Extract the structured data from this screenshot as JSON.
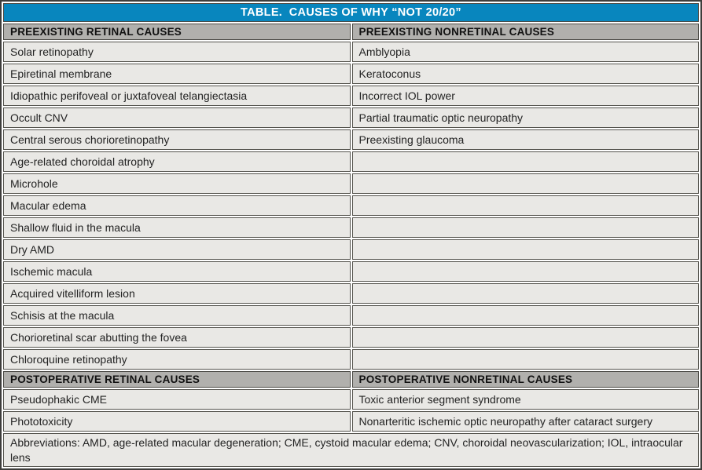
{
  "title": "TABLE.  CAUSES OF WHY “NOT 20/20”",
  "colors": {
    "header_blue": "#0886BE",
    "section_gray": "#B1B0AD",
    "row_bg": "#E9E8E5",
    "border_dark": "#4A4944"
  },
  "sections": [
    {
      "left_header": "PREEXISTING RETINAL CAUSES",
      "right_header": "PREEXISTING NONRETINAL CAUSES",
      "rows": [
        [
          "Solar retinopathy",
          "Amblyopia"
        ],
        [
          "Epiretinal membrane",
          "Keratoconus"
        ],
        [
          "Idiopathic perifoveal or juxtafoveal telangiectasia",
          "Incorrect IOL power"
        ],
        [
          "Occult CNV",
          "Partial traumatic optic neuropathy"
        ],
        [
          "Central serous chorioretinopathy",
          "Preexisting glaucoma"
        ],
        [
          "Age-related choroidal atrophy",
          ""
        ],
        [
          "Microhole",
          ""
        ],
        [
          "Macular edema",
          ""
        ],
        [
          "Shallow fluid in the macula",
          ""
        ],
        [
          "Dry AMD",
          ""
        ],
        [
          "Ischemic macula",
          ""
        ],
        [
          "Acquired vitelliform lesion",
          ""
        ],
        [
          "Schisis at the macula",
          ""
        ],
        [
          "Chorioretinal scar abutting the fovea",
          ""
        ],
        [
          "Chloroquine retinopathy",
          ""
        ]
      ]
    },
    {
      "left_header": "POSTOPERATIVE RETINAL CAUSES",
      "right_header": "POSTOPERATIVE NONRETINAL CAUSES",
      "rows": [
        [
          "Pseudophakic CME",
          "Toxic anterior segment syndrome"
        ],
        [
          "Phototoxicity",
          "Nonarteritic ischemic optic neuropathy after cataract surgery"
        ]
      ]
    }
  ],
  "footnote": "Abbreviations: AMD, age-related macular degeneration; CME, cystoid macular edema; CNV, choroidal neovascularization; IOL, intraocular lens"
}
